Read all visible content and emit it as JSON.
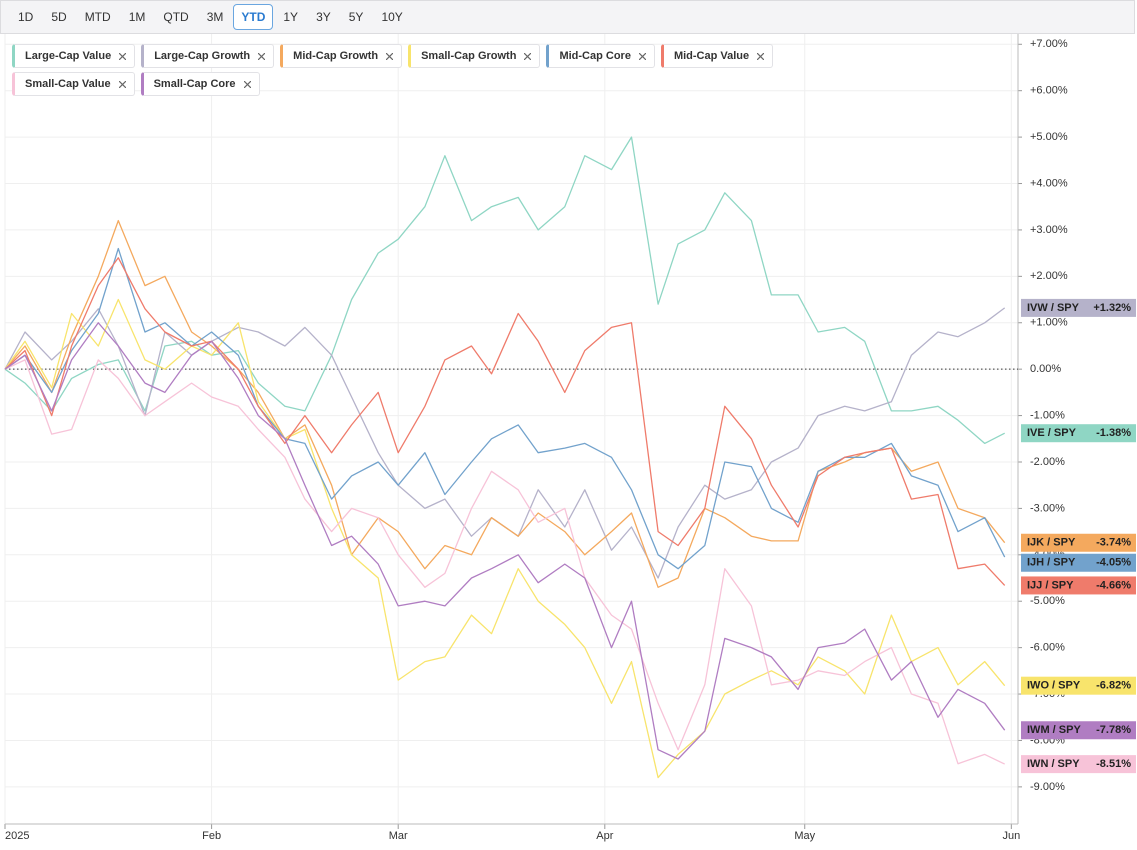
{
  "range_buttons": [
    "1D",
    "5D",
    "MTD",
    "1M",
    "QTD",
    "3M",
    "YTD",
    "1Y",
    "3Y",
    "5Y",
    "10Y"
  ],
  "selected_range": "YTD",
  "chart_data": {
    "type": "line",
    "x": [
      0,
      3,
      7,
      10,
      14,
      17,
      21,
      24,
      28,
      31,
      35,
      38,
      42,
      45,
      49,
      52,
      56,
      59,
      63,
      66,
      70,
      73,
      77,
      80,
      84,
      87,
      91,
      94,
      98,
      101,
      105,
      108,
      112,
      115,
      119,
      122,
      126,
      129,
      133,
      136,
      140,
      143,
      147,
      150
    ],
    "xlim": [
      0,
      152
    ],
    "xticks": [
      {
        "value": 0,
        "label": "2025"
      },
      {
        "value": 31,
        "label": "Feb"
      },
      {
        "value": 59,
        "label": "Mar"
      },
      {
        "value": 90,
        "label": "Apr"
      },
      {
        "value": 120,
        "label": "May"
      },
      {
        "value": 151,
        "label": "Jun"
      }
    ],
    "ylim": [
      -9.8,
      7.2
    ],
    "yticks": [
      {
        "value": 7,
        "label": "+7.00%"
      },
      {
        "value": 6,
        "label": "+6.00%"
      },
      {
        "value": 5,
        "label": "+5.00%"
      },
      {
        "value": 4,
        "label": "+4.00%"
      },
      {
        "value": 3,
        "label": "+3.00%"
      },
      {
        "value": 2,
        "label": "+2.00%"
      },
      {
        "value": 1,
        "label": "+1.00%"
      },
      {
        "value": 0,
        "label": "0.00%"
      },
      {
        "value": -1,
        "label": "-1.00%"
      },
      {
        "value": -2,
        "label": "-2.00%"
      },
      {
        "value": -3,
        "label": "-3.00%"
      },
      {
        "value": -4,
        "label": "-4.00%"
      },
      {
        "value": -5,
        "label": "-5.00%"
      },
      {
        "value": -6,
        "label": "-6.00%"
      },
      {
        "value": -7,
        "label": "-7.00%"
      },
      {
        "value": -8,
        "label": "-8.00%"
      },
      {
        "value": -9,
        "label": "-9.00%"
      }
    ],
    "grid": true,
    "zero_line": true,
    "series": [
      {
        "name": "Large-Cap Value",
        "ticker": "IVE / SPY",
        "end_label": "-1.38%",
        "color": "#8fd6c4",
        "values": [
          0,
          -0.3,
          -0.9,
          -0.2,
          0.1,
          0.2,
          -0.9,
          0.5,
          0.6,
          0.3,
          0.4,
          -0.3,
          -0.8,
          -0.9,
          0.3,
          1.5,
          2.5,
          2.8,
          3.5,
          4.6,
          3.2,
          3.5,
          3.7,
          3.0,
          3.5,
          4.6,
          4.3,
          5.0,
          1.4,
          2.7,
          3.0,
          3.8,
          3.2,
          1.6,
          1.6,
          0.8,
          0.9,
          0.6,
          -0.9,
          -0.9,
          -0.8,
          -1.1,
          -1.6,
          -1.38
        ]
      },
      {
        "name": "Large-Cap Growth",
        "ticker": "IVW / SPY",
        "end_label": "+1.32%",
        "color": "#b5b2ca",
        "values": [
          0,
          0.8,
          0.2,
          0.6,
          1.3,
          0.5,
          -1.0,
          0.8,
          0.3,
          0.6,
          0.9,
          0.8,
          0.5,
          0.9,
          0.3,
          -0.6,
          -1.8,
          -2.5,
          -3.0,
          -2.8,
          -3.6,
          -3.2,
          -3.6,
          -2.6,
          -3.4,
          -2.6,
          -3.9,
          -3.4,
          -4.5,
          -3.4,
          -2.5,
          -2.8,
          -2.6,
          -2.0,
          -1.7,
          -1.0,
          -0.8,
          -0.9,
          -0.7,
          0.3,
          0.8,
          0.7,
          1.0,
          1.32
        ]
      },
      {
        "name": "Mid-Cap Growth",
        "ticker": "IJK / SPY",
        "end_label": "-3.74%",
        "color": "#f4a95e",
        "values": [
          0,
          0.5,
          -0.5,
          0.7,
          2.0,
          3.2,
          1.8,
          2.0,
          0.8,
          0.5,
          0.0,
          -0.5,
          -1.5,
          -1.2,
          -2.5,
          -4.0,
          -3.2,
          -3.5,
          -4.3,
          -3.8,
          -4.0,
          -3.2,
          -3.6,
          -3.1,
          -3.5,
          -4.0,
          -3.5,
          -3.1,
          -4.7,
          -4.5,
          -3.0,
          -3.2,
          -3.6,
          -3.7,
          -3.7,
          -2.2,
          -2.0,
          -1.8,
          -1.7,
          -2.2,
          -2.0,
          -3.0,
          -3.2,
          -3.74
        ]
      },
      {
        "name": "Small-Cap Growth",
        "ticker": "IWO / SPY",
        "end_label": "-6.82%",
        "color": "#f8e46c",
        "values": [
          0,
          0.6,
          -0.4,
          1.2,
          0.5,
          1.5,
          0.2,
          0.0,
          0.5,
          0.3,
          1.0,
          -0.7,
          -1.5,
          -1.3,
          -3.0,
          -4.0,
          -4.5,
          -6.7,
          -6.3,
          -6.2,
          -5.3,
          -5.7,
          -4.3,
          -5.0,
          -5.5,
          -6.0,
          -7.2,
          -6.3,
          -8.8,
          -8.3,
          -7.8,
          -7.0,
          -6.7,
          -6.5,
          -6.8,
          -6.2,
          -6.5,
          -7.0,
          -5.3,
          -6.3,
          -6.0,
          -6.8,
          -6.3,
          -6.82
        ]
      },
      {
        "name": "Mid-Cap Core",
        "ticker": "IJH / SPY",
        "end_label": "-4.05%",
        "color": "#72a2cc",
        "values": [
          0,
          0.3,
          -0.5,
          0.4,
          1.2,
          2.6,
          0.8,
          1.0,
          0.5,
          0.8,
          0.3,
          -0.8,
          -1.5,
          -1.6,
          -2.8,
          -2.3,
          -2.0,
          -2.5,
          -1.8,
          -2.7,
          -2.0,
          -1.5,
          -1.2,
          -1.8,
          -1.7,
          -1.6,
          -1.9,
          -2.6,
          -4.0,
          -4.3,
          -3.8,
          -2.0,
          -2.1,
          -3.0,
          -3.3,
          -2.2,
          -1.9,
          -1.9,
          -1.6,
          -2.3,
          -2.5,
          -3.5,
          -3.2,
          -4.05
        ]
      },
      {
        "name": "Mid-Cap Value",
        "ticker": "IJJ / SPY",
        "end_label": "-4.66%",
        "color": "#ef7b6b",
        "values": [
          0,
          0.4,
          -1.0,
          0.5,
          1.8,
          2.4,
          1.3,
          0.8,
          0.5,
          0.6,
          0.0,
          -0.8,
          -1.6,
          -1.0,
          -1.8,
          -1.2,
          -0.5,
          -1.8,
          -0.8,
          0.2,
          0.5,
          -0.1,
          1.2,
          0.6,
          -0.5,
          0.4,
          0.9,
          1.0,
          -3.5,
          -3.8,
          -3.0,
          -0.8,
          -1.5,
          -2.5,
          -3.4,
          -2.3,
          -1.9,
          -1.8,
          -1.7,
          -2.8,
          -2.7,
          -4.3,
          -4.2,
          -4.66
        ]
      },
      {
        "name": "Small-Cap Value",
        "ticker": "IWN / SPY",
        "end_label": "-8.51%",
        "color": "#f7c3d8",
        "values": [
          0,
          0.2,
          -1.4,
          -1.3,
          0.2,
          -0.2,
          -1.0,
          -0.7,
          -0.3,
          -0.6,
          -0.8,
          -1.3,
          -1.9,
          -2.8,
          -3.5,
          -3.0,
          -3.2,
          -4.0,
          -4.7,
          -4.4,
          -3.0,
          -2.2,
          -2.6,
          -3.3,
          -3.0,
          -4.5,
          -5.3,
          -5.6,
          -7.2,
          -8.2,
          -6.8,
          -4.3,
          -5.1,
          -6.8,
          -6.7,
          -6.5,
          -6.6,
          -6.3,
          -6.0,
          -7.0,
          -7.2,
          -8.5,
          -8.3,
          -8.51
        ]
      },
      {
        "name": "Small-Cap Core",
        "ticker": "IWM / SPY",
        "end_label": "-7.78%",
        "color": "#b07dc2",
        "values": [
          0,
          0.3,
          -0.9,
          0.2,
          1.0,
          0.5,
          -0.3,
          -0.5,
          0.3,
          0.6,
          -0.2,
          -1.0,
          -1.5,
          -2.5,
          -3.8,
          -3.6,
          -4.2,
          -5.1,
          -5.0,
          -5.1,
          -4.5,
          -4.3,
          -4.0,
          -4.6,
          -4.2,
          -4.5,
          -6.0,
          -5.0,
          -8.2,
          -8.4,
          -7.8,
          -5.8,
          -6.0,
          -6.2,
          -6.9,
          -6.0,
          -5.9,
          -5.6,
          -6.7,
          -6.3,
          -7.5,
          -6.9,
          -7.2,
          -7.78
        ]
      }
    ]
  }
}
